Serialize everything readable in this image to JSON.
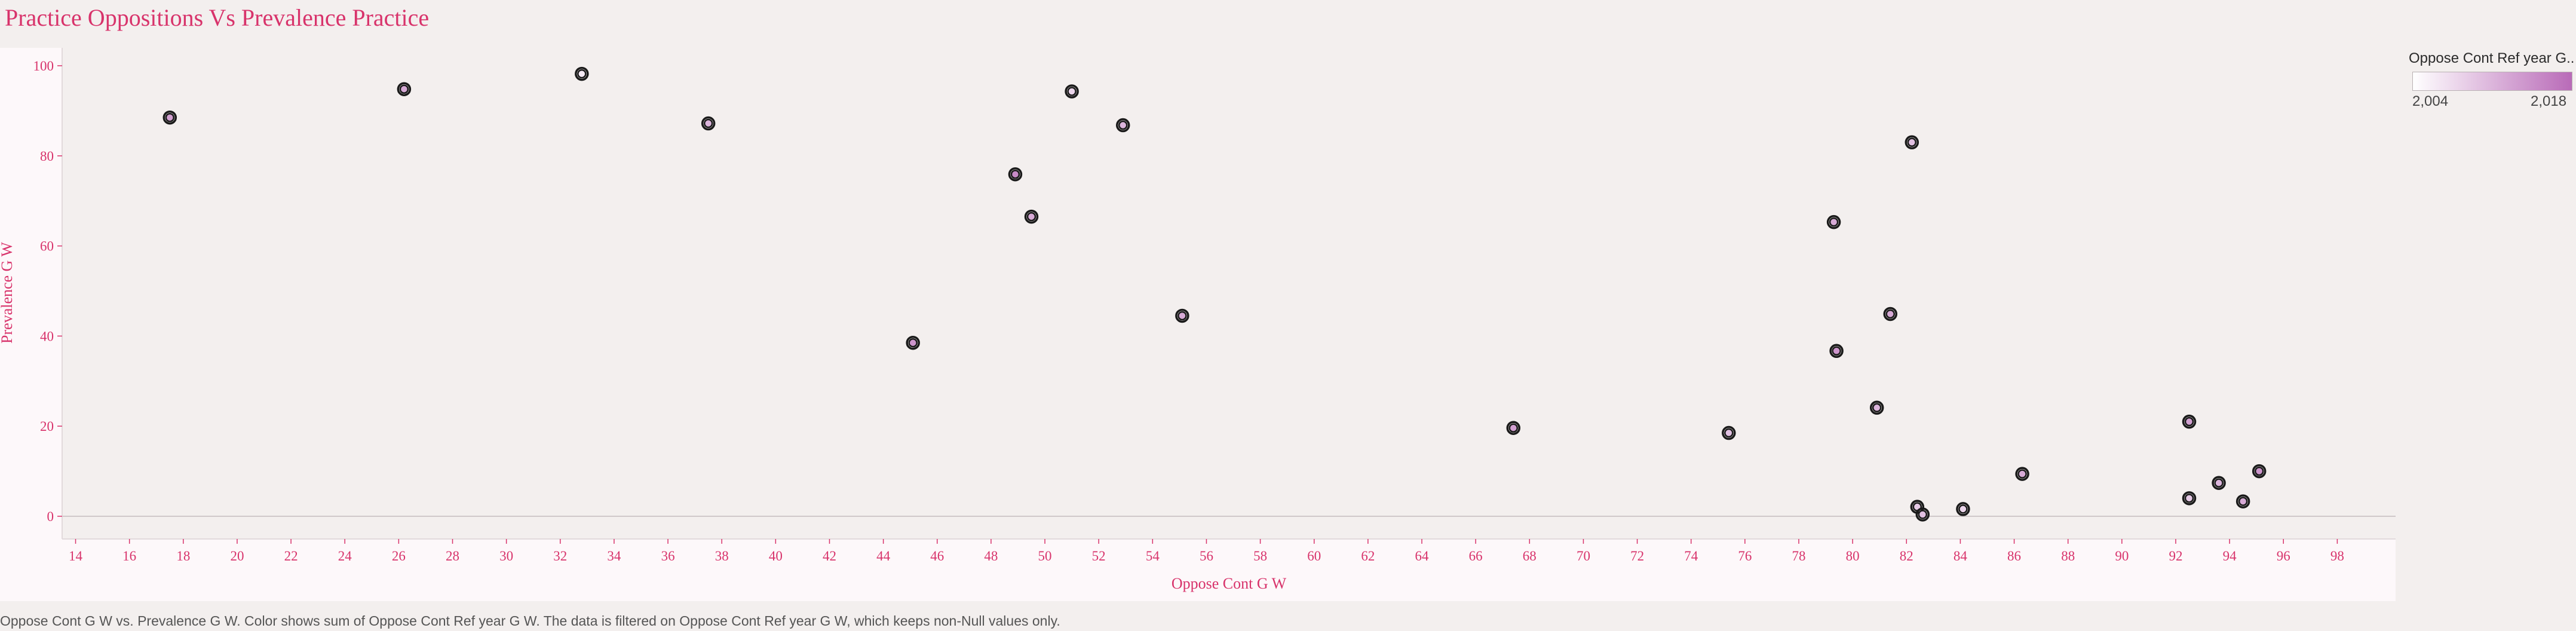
{
  "title": "Practice Oppositions Vs Prevalence Practice",
  "caption": "Oppose Cont G W vs. Prevalence G W.  Color shows sum of Oppose Cont Ref year G W. The data is filtered on Oppose Cont Ref year G W, which keeps non-Null values only.",
  "legend": {
    "title": "Oppose Cont Ref year G..",
    "min_label": "2,004",
    "max_label": "2,018"
  },
  "colors": {
    "title": "#d8336b",
    "axis": "#d8336b",
    "marker_ring": "#1a1a1a",
    "marker_low": "#ffffff",
    "marker_high": "#b96bb8"
  },
  "chart_data": {
    "type": "scatter",
    "xlabel": "Oppose Cont G W",
    "ylabel": "Prevalence G W",
    "xlim": [
      13.5,
      99.5
    ],
    "ylim": [
      -2,
      100
    ],
    "xticks": [
      "14",
      "16",
      "18",
      "20",
      "22",
      "24",
      "26",
      "28",
      "30",
      "32",
      "34",
      "36",
      "38",
      "40",
      "42",
      "44",
      "46",
      "48",
      "50",
      "52",
      "54",
      "56",
      "58",
      "60",
      "62",
      "64",
      "66",
      "68",
      "70",
      "72",
      "74",
      "76",
      "78",
      "80",
      "82",
      "84",
      "86",
      "88",
      "90",
      "92",
      "94",
      "96",
      "98"
    ],
    "yticks": [
      "0",
      "20",
      "40",
      "60",
      "80",
      "100"
    ],
    "grid": false,
    "legend_position": "top-right",
    "points": [
      {
        "x": 17.5,
        "y": 88.5,
        "color_value": 2013
      },
      {
        "x": 26.2,
        "y": 94.8,
        "color_value": 2012
      },
      {
        "x": 32.8,
        "y": 98.2,
        "color_value": 2006
      },
      {
        "x": 37.5,
        "y": 87.2,
        "color_value": 2011
      },
      {
        "x": 45.1,
        "y": 38.5,
        "color_value": 2014
      },
      {
        "x": 48.9,
        "y": 75.9,
        "color_value": 2015
      },
      {
        "x": 49.5,
        "y": 66.5,
        "color_value": 2012
      },
      {
        "x": 51.0,
        "y": 94.3,
        "color_value": 2008
      },
      {
        "x": 52.9,
        "y": 86.8,
        "color_value": 2011
      },
      {
        "x": 55.1,
        "y": 44.5,
        "color_value": 2012
      },
      {
        "x": 67.4,
        "y": 19.6,
        "color_value": 2013
      },
      {
        "x": 75.4,
        "y": 18.5,
        "color_value": 2010
      },
      {
        "x": 79.3,
        "y": 65.3,
        "color_value": 2012
      },
      {
        "x": 79.4,
        "y": 36.7,
        "color_value": 2014
      },
      {
        "x": 80.9,
        "y": 24.1,
        "color_value": 2011
      },
      {
        "x": 81.4,
        "y": 44.9,
        "color_value": 2012
      },
      {
        "x": 82.2,
        "y": 83.0,
        "color_value": 2010
      },
      {
        "x": 82.4,
        "y": 2.1,
        "color_value": 2009
      },
      {
        "x": 82.6,
        "y": 0.4,
        "color_value": 2010
      },
      {
        "x": 84.1,
        "y": 1.6,
        "color_value": 2008
      },
      {
        "x": 86.3,
        "y": 9.4,
        "color_value": 2012
      },
      {
        "x": 92.5,
        "y": 21.0,
        "color_value": 2013
      },
      {
        "x": 92.5,
        "y": 4.0,
        "color_value": 2009
      },
      {
        "x": 93.6,
        "y": 7.4,
        "color_value": 2011
      },
      {
        "x": 94.5,
        "y": 3.3,
        "color_value": 2012
      },
      {
        "x": 95.1,
        "y": 10.0,
        "color_value": 2014
      }
    ]
  }
}
